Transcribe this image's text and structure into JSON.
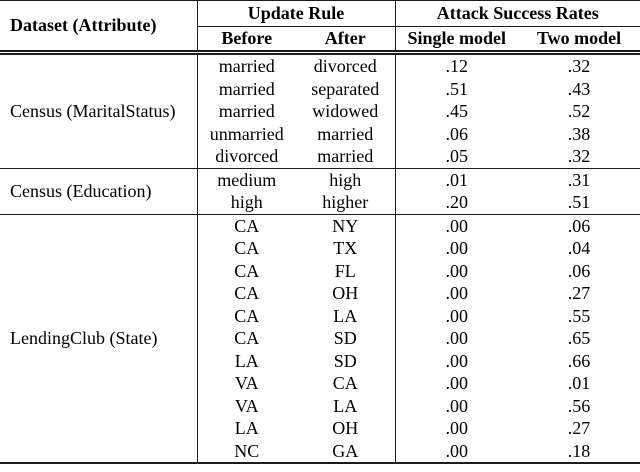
{
  "table": {
    "header": {
      "dataset": "Dataset (Attribute)",
      "update_rule": "Update Rule",
      "attack_success": "Attack Success Rates",
      "before": "Before",
      "after": "After",
      "single_model": "Single model",
      "two_model": "Two model"
    },
    "groups": [
      {
        "dataset": "Census (MaritalStatus)",
        "rows": [
          {
            "before": "married",
            "after": "divorced",
            "single": ".12",
            "two": ".32"
          },
          {
            "before": "married",
            "after": "separated",
            "single": ".51",
            "two": ".43"
          },
          {
            "before": "married",
            "after": "widowed",
            "single": ".45",
            "two": ".52"
          },
          {
            "before": "unmarried",
            "after": "married",
            "single": ".06",
            "two": ".38"
          },
          {
            "before": "divorced",
            "after": "married",
            "single": ".05",
            "two": ".32"
          }
        ]
      },
      {
        "dataset": "Census (Education)",
        "rows": [
          {
            "before": "medium",
            "after": "high",
            "single": ".01",
            "two": ".31"
          },
          {
            "before": "high",
            "after": "higher",
            "single": ".20",
            "two": ".51"
          }
        ]
      },
      {
        "dataset": "LendingClub (State)",
        "rows": [
          {
            "before": "CA",
            "after": "NY",
            "single": ".00",
            "two": ".06"
          },
          {
            "before": "CA",
            "after": "TX",
            "single": ".00",
            "two": ".04"
          },
          {
            "before": "CA",
            "after": "FL",
            "single": ".00",
            "two": ".06"
          },
          {
            "before": "CA",
            "after": "OH",
            "single": ".00",
            "two": ".27"
          },
          {
            "before": "CA",
            "after": "LA",
            "single": ".00",
            "two": ".55"
          },
          {
            "before": "CA",
            "after": "SD",
            "single": ".00",
            "two": ".65"
          },
          {
            "before": "LA",
            "after": "SD",
            "single": ".00",
            "two": ".66"
          },
          {
            "before": "VA",
            "after": "CA",
            "single": ".00",
            "two": ".01"
          },
          {
            "before": "VA",
            "after": "LA",
            "single": ".00",
            "two": ".56"
          },
          {
            "before": "LA",
            "after": "OH",
            "single": ".00",
            "two": ".27"
          },
          {
            "before": "NC",
            "after": "GA",
            "single": ".00",
            "two": ".18"
          }
        ]
      }
    ],
    "colors": {
      "rule": "#1c1c1c",
      "text": "#000000",
      "background": "#ffffff"
    }
  }
}
